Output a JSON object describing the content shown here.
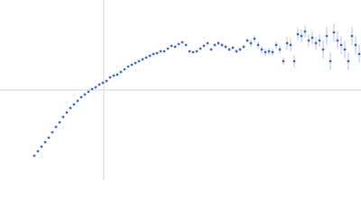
{
  "chart_data": {
    "type": "scatter",
    "color": "#3f6cc0",
    "error_color": "#b4c3e6",
    "xlim": [
      -1.15,
      2.85
    ],
    "ylim": [
      -1,
      1
    ],
    "x": [
      -0.77,
      -0.73,
      -0.69,
      -0.65,
      -0.61,
      -0.57,
      -0.53,
      -0.49,
      -0.45,
      -0.41,
      -0.37,
      -0.33,
      -0.29,
      -0.25,
      -0.21,
      -0.17,
      -0.13,
      -0.09,
      -0.05,
      -0.01,
      0.03,
      0.07,
      0.11,
      0.15,
      0.19,
      0.23,
      0.27,
      0.31,
      0.35,
      0.39,
      0.43,
      0.47,
      0.51,
      0.55,
      0.59,
      0.63,
      0.67,
      0.71,
      0.75,
      0.79,
      0.83,
      0.87,
      0.91,
      0.95,
      0.99,
      1.03,
      1.07,
      1.11,
      1.15,
      1.19,
      1.23,
      1.27,
      1.31,
      1.35,
      1.39,
      1.43,
      1.47,
      1.51,
      1.55,
      1.59,
      1.63,
      1.67,
      1.71,
      1.75,
      1.79,
      1.83,
      1.87,
      1.91,
      1.95,
      1.99,
      2.03,
      2.07,
      2.11,
      2.15,
      2.19,
      2.23,
      2.27,
      2.31,
      2.35,
      2.39,
      2.43,
      2.47,
      2.51,
      2.55,
      2.59,
      2.63,
      2.67,
      2.71,
      2.75,
      2.79,
      2.83
    ],
    "values": [
      -0.73,
      -0.68,
      -0.63,
      -0.58,
      -0.53,
      -0.47,
      -0.41,
      -0.36,
      -0.3,
      -0.25,
      -0.2,
      -0.16,
      -0.12,
      -0.08,
      -0.05,
      -0.02,
      0.01,
      0.03,
      0.06,
      0.08,
      0.1,
      0.14,
      0.16,
      0.17,
      0.2,
      0.23,
      0.26,
      0.28,
      0.3,
      0.32,
      0.34,
      0.36,
      0.38,
      0.4,
      0.41,
      0.43,
      0.43,
      0.46,
      0.49,
      0.48,
      0.51,
      0.53,
      0.5,
      0.43,
      0.42,
      0.43,
      0.46,
      0.49,
      0.52,
      0.45,
      0.5,
      0.52,
      0.5,
      0.48,
      0.45,
      0.47,
      0.43,
      0.45,
      0.48,
      0.55,
      0.52,
      0.57,
      0.5,
      0.45,
      0.42,
      0.43,
      0.42,
      0.5,
      0.45,
      0.32,
      0.52,
      0.5,
      0.32,
      0.62,
      0.6,
      0.65,
      0.55,
      0.58,
      0.52,
      0.55,
      0.45,
      0.6,
      0.32,
      0.64,
      0.55,
      0.5,
      0.45,
      0.32,
      0.6,
      0.5,
      0.4
    ],
    "errors": [
      0.005,
      0.005,
      0.005,
      0.005,
      0.005,
      0.005,
      0.005,
      0.005,
      0.005,
      0.005,
      0.005,
      0.005,
      0.005,
      0.005,
      0.005,
      0.005,
      0.005,
      0.005,
      0.005,
      0.005,
      0.005,
      0.005,
      0.005,
      0.005,
      0.005,
      0.005,
      0.005,
      0.005,
      0.005,
      0.005,
      0.01,
      0.01,
      0.01,
      0.01,
      0.01,
      0.01,
      0.01,
      0.01,
      0.01,
      0.01,
      0.01,
      0.01,
      0.01,
      0.01,
      0.01,
      0.01,
      0.01,
      0.01,
      0.01,
      0.01,
      0.02,
      0.02,
      0.02,
      0.02,
      0.02,
      0.02,
      0.02,
      0.02,
      0.02,
      0.02,
      0.04,
      0.04,
      0.04,
      0.04,
      0.04,
      0.04,
      0.04,
      0.04,
      0.04,
      0.04,
      0.07,
      0.07,
      0.07,
      0.07,
      0.07,
      0.07,
      0.07,
      0.07,
      0.07,
      0.07,
      0.1,
      0.1,
      0.1,
      0.1,
      0.1,
      0.1,
      0.1,
      0.1,
      0.1,
      0.1,
      0.1
    ]
  }
}
